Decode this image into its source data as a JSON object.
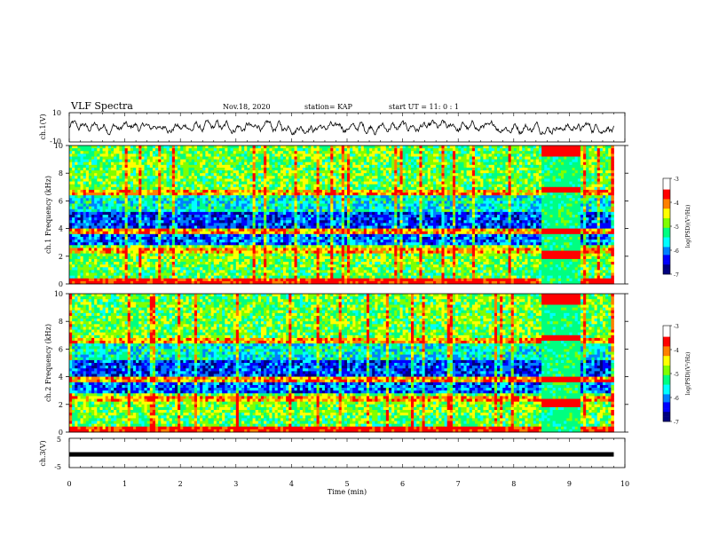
{
  "header": {
    "title": "VLF Spectra",
    "date": "Nov.18, 2020",
    "station": "station= KAP",
    "start_time": "start  UT  =   11: 0  : 1"
  },
  "chart_data": [
    {
      "type": "line",
      "panel": "ch1-waveform",
      "ylabel": "ch.1(V)",
      "ylim": [
        -10,
        10
      ],
      "y_ticks": [
        "10",
        "-10"
      ],
      "xlim": [
        0,
        10
      ],
      "note_values": "noise-like waveform oscillating roughly between -4 and +4 V over 0–9.8 min"
    },
    {
      "type": "heatmap",
      "panel": "ch1-spectrogram",
      "ylabel": "ch.1 Frequency (kHz)",
      "ylim": [
        0,
        10
      ],
      "y_ticks": [
        "0",
        "2",
        "4",
        "6",
        "8",
        "10"
      ],
      "xlim": [
        0,
        10
      ],
      "data_extent_min": [
        0,
        9.8
      ],
      "burst_interval_min": [
        8.5,
        9.2
      ],
      "colorbar": {
        "label": "log(PSD)(V²/Hz)",
        "range": [
          -7,
          -3
        ],
        "ticks": [
          "-3",
          "-4",
          "-5",
          "-6",
          "-7"
        ]
      }
    },
    {
      "type": "heatmap",
      "panel": "ch2-spectrogram",
      "ylabel": "ch.2 Frequency (kHz)",
      "ylim": [
        0,
        10
      ],
      "y_ticks": [
        "0",
        "2",
        "4",
        "6",
        "8",
        "10"
      ],
      "xlim": [
        0,
        10
      ],
      "data_extent_min": [
        0,
        9.8
      ],
      "burst_interval_min": [
        8.5,
        9.2
      ],
      "colorbar": {
        "label": "log(PSD)(V²/Hz)",
        "range": [
          -7,
          -3
        ],
        "ticks": [
          "-3",
          "-4",
          "-5",
          "-6",
          "-7"
        ]
      }
    },
    {
      "type": "line",
      "panel": "ch3-waveform",
      "ylabel": "ch.3(V)",
      "ylim": [
        -5,
        5
      ],
      "y_ticks": [
        "5",
        "-5"
      ],
      "xlim": [
        0,
        10
      ],
      "note_values": "nearly constant trace near -0.5 V from 0 to 9.8 min"
    }
  ],
  "x_axis": {
    "label": "Time  (min)",
    "ticks": [
      "0",
      "1",
      "2",
      "3",
      "4",
      "5",
      "6",
      "7",
      "8",
      "9",
      "10"
    ]
  },
  "colors": {
    "scale": [
      "#00007f",
      "#0000ff",
      "#0080ff",
      "#00ffff",
      "#00ff80",
      "#80ff00",
      "#ffff00",
      "#ff8000",
      "#ff0000",
      "#ffffff"
    ]
  }
}
